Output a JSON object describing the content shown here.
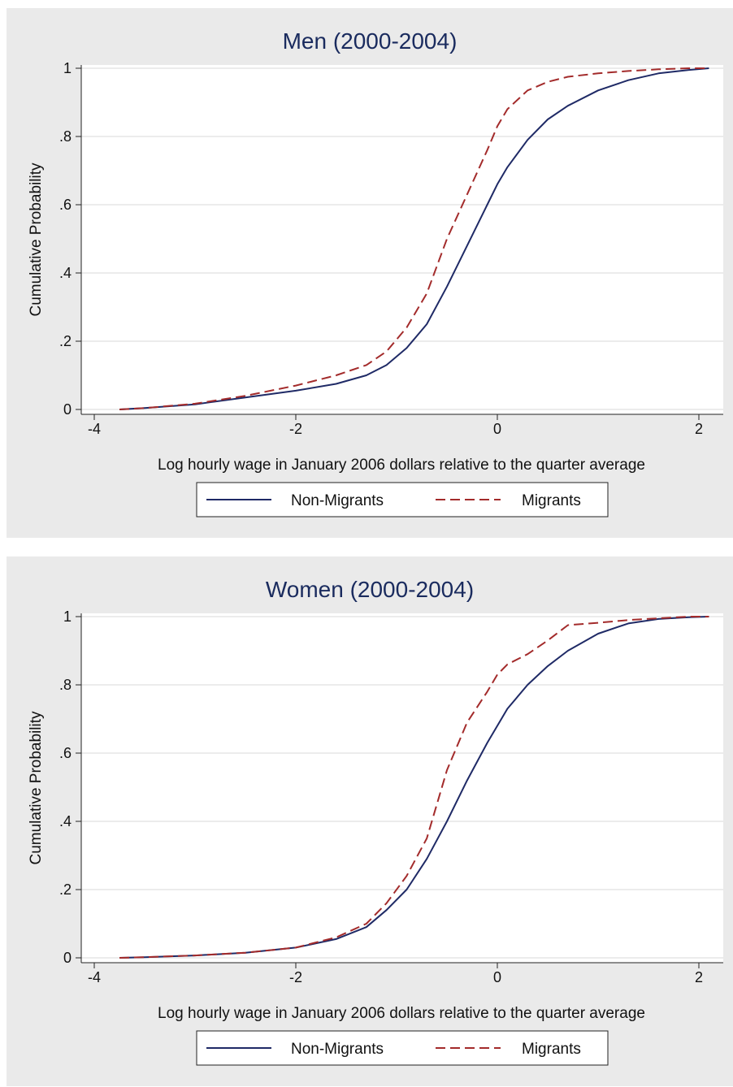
{
  "chart_data": [
    {
      "type": "line",
      "title": "Men (2000-2004)",
      "xlabel": "Log hourly wage in January 2006 dollars relative to the quarter average",
      "ylabel": "Cumulative Probability",
      "xlim": [
        -4,
        2
      ],
      "ylim": [
        0,
        1
      ],
      "xticks": [
        "-4",
        "-2",
        "0",
        "2"
      ],
      "yticks": [
        "0",
        ".2",
        ".4",
        ".6",
        ".8",
        "1"
      ],
      "grid": "horizontal",
      "legend": "bottom",
      "series": [
        {
          "name": "Non-Migrants",
          "color": "#1f2a66",
          "style": "solid",
          "x": [
            -3.75,
            -3.5,
            -3.0,
            -2.5,
            -2.0,
            -1.6,
            -1.3,
            -1.1,
            -0.9,
            -0.7,
            -0.5,
            -0.3,
            -0.1,
            0.0,
            0.1,
            0.3,
            0.5,
            0.7,
            1.0,
            1.3,
            1.6,
            1.9,
            2.1
          ],
          "y": [
            0.0,
            0.004,
            0.015,
            0.035,
            0.055,
            0.075,
            0.1,
            0.13,
            0.18,
            0.25,
            0.36,
            0.48,
            0.6,
            0.66,
            0.71,
            0.79,
            0.85,
            0.89,
            0.935,
            0.965,
            0.985,
            0.995,
            1.0
          ]
        },
        {
          "name": "Migrants",
          "color": "#a32b2b",
          "style": "dashed",
          "x": [
            -3.75,
            -3.5,
            -3.0,
            -2.5,
            -2.0,
            -1.6,
            -1.3,
            -1.1,
            -0.9,
            -0.7,
            -0.5,
            -0.3,
            -0.1,
            0.0,
            0.1,
            0.3,
            0.5,
            0.7,
            1.0,
            1.3,
            1.6,
            1.9,
            2.1
          ],
          "y": [
            0.0,
            0.004,
            0.017,
            0.04,
            0.07,
            0.1,
            0.13,
            0.17,
            0.24,
            0.34,
            0.5,
            0.63,
            0.76,
            0.83,
            0.88,
            0.935,
            0.96,
            0.975,
            0.985,
            0.992,
            0.997,
            1.0,
            1.0
          ]
        }
      ]
    },
    {
      "type": "line",
      "title": "Women (2000-2004)",
      "xlabel": "Log hourly wage in January 2006 dollars relative to the quarter average",
      "ylabel": "Cumulative Probability",
      "xlim": [
        -4,
        2
      ],
      "ylim": [
        0,
        1
      ],
      "xticks": [
        "-4",
        "-2",
        "0",
        "2"
      ],
      "yticks": [
        "0",
        ".2",
        ".4",
        ".6",
        ".8",
        "1"
      ],
      "grid": "horizontal",
      "legend": "bottom",
      "series": [
        {
          "name": "Non-Migrants",
          "color": "#1f2a66",
          "style": "solid",
          "x": [
            -3.75,
            -3.5,
            -3.0,
            -2.5,
            -2.0,
            -1.6,
            -1.3,
            -1.1,
            -0.9,
            -0.7,
            -0.5,
            -0.3,
            -0.1,
            0.0,
            0.1,
            0.3,
            0.5,
            0.7,
            1.0,
            1.3,
            1.6,
            1.9,
            2.1
          ],
          "y": [
            0.0,
            0.002,
            0.007,
            0.015,
            0.03,
            0.055,
            0.09,
            0.14,
            0.2,
            0.29,
            0.4,
            0.52,
            0.63,
            0.68,
            0.73,
            0.8,
            0.855,
            0.9,
            0.95,
            0.98,
            0.993,
            0.998,
            1.0
          ]
        },
        {
          "name": "Migrants",
          "color": "#a32b2b",
          "style": "dashed",
          "x": [
            -3.75,
            -3.5,
            -3.0,
            -2.5,
            -2.0,
            -1.6,
            -1.3,
            -1.1,
            -0.9,
            -0.7,
            -0.5,
            -0.3,
            -0.1,
            0.0,
            0.1,
            0.3,
            0.5,
            0.7,
            1.0,
            1.3,
            1.6,
            1.9,
            2.1
          ],
          "y": [
            0.0,
            0.002,
            0.007,
            0.015,
            0.03,
            0.06,
            0.1,
            0.16,
            0.24,
            0.35,
            0.55,
            0.69,
            0.78,
            0.83,
            0.86,
            0.89,
            0.93,
            0.975,
            0.982,
            0.99,
            0.995,
            1.0,
            1.0
          ]
        }
      ]
    }
  ]
}
